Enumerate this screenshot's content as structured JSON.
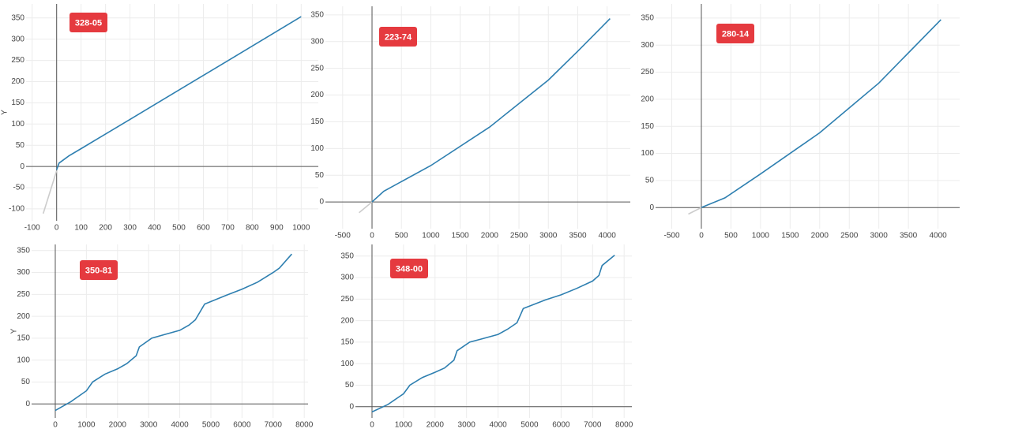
{
  "chart_data": [
    {
      "type": "line",
      "annotation": "328-05",
      "y_label": "Y",
      "xlim": [
        -125,
        1070
      ],
      "ylim": [
        -128,
        383
      ],
      "xticks": [
        -100,
        0,
        100,
        200,
        300,
        400,
        500,
        600,
        700,
        800,
        900,
        1000
      ],
      "yticks": [
        -100,
        -50,
        0,
        50,
        100,
        150,
        200,
        250,
        300,
        350
      ],
      "grid": true,
      "series": [
        {
          "color": "#cccccc",
          "x": [
            -55,
            0
          ],
          "values": [
            -111,
            -10
          ]
        },
        {
          "color": "#2e7fb0",
          "x": [
            0,
            10,
            50,
            100,
            300,
            500,
            700,
            1000
          ],
          "values": [
            -8,
            8,
            25,
            42,
            111,
            180,
            249,
            353
          ]
        }
      ]
    },
    {
      "type": "line",
      "annotation": "223-74",
      "xlim": [
        -793,
        4394
      ],
      "ylim": [
        -50,
        366
      ],
      "xticks": [
        -500,
        0,
        500,
        1000,
        1500,
        2000,
        2500,
        3000,
        3500,
        4000
      ],
      "yticks": [
        0,
        50,
        100,
        150,
        200,
        250,
        300,
        350
      ],
      "grid": true,
      "series": [
        {
          "color": "#cccccc",
          "x": [
            -220,
            0
          ],
          "values": [
            -20,
            0
          ]
        },
        {
          "color": "#2e7fb0",
          "x": [
            0,
            200,
            1000,
            2000,
            3000,
            3500,
            4050
          ],
          "values": [
            0,
            20,
            68,
            140,
            228,
            282,
            343
          ]
        }
      ]
    },
    {
      "type": "line",
      "annotation": "280-14",
      "xlim": [
        -774,
        4366
      ],
      "ylim": [
        -39,
        376
      ],
      "xticks": [
        -500,
        0,
        500,
        1000,
        1500,
        2000,
        2500,
        3000,
        3500,
        4000
      ],
      "yticks": [
        0,
        50,
        100,
        150,
        200,
        250,
        300,
        350
      ],
      "grid": true,
      "series": [
        {
          "color": "#cccccc",
          "x": [
            -220,
            0
          ],
          "values": [
            -12,
            0
          ]
        },
        {
          "color": "#2e7fb0",
          "x": [
            0,
            400,
            1000,
            2000,
            3000,
            4050
          ],
          "values": [
            0,
            18,
            62,
            138,
            230,
            347
          ]
        }
      ]
    },
    {
      "type": "line",
      "annotation": "350-81",
      "y_label": "Y",
      "xlim": [
        -761,
        8122
      ],
      "ylim": [
        -32,
        364
      ],
      "xticks": [
        0,
        1000,
        2000,
        3000,
        4000,
        5000,
        6000,
        7000,
        8000
      ],
      "yticks": [
        0,
        50,
        100,
        150,
        200,
        250,
        300,
        350
      ],
      "grid": true,
      "series": [
        {
          "color": "#2e7fb0",
          "x": [
            0,
            500,
            1000,
            1200,
            1600,
            2000,
            2300,
            2600,
            2700,
            3100,
            3500,
            4000,
            4300,
            4500,
            4800,
            5500,
            6000,
            6500,
            7000,
            7200,
            7600
          ],
          "values": [
            -15,
            5,
            30,
            50,
            68,
            80,
            92,
            110,
            130,
            150,
            158,
            168,
            180,
            192,
            228,
            248,
            262,
            278,
            300,
            310,
            342
          ]
        }
      ]
    },
    {
      "type": "line",
      "annotation": "348-00",
      "xlim": [
        -526,
        8246
      ],
      "ylim": [
        -26,
        377
      ],
      "xticks": [
        0,
        1000,
        2000,
        3000,
        4000,
        5000,
        6000,
        7000,
        8000
      ],
      "yticks": [
        0,
        50,
        100,
        150,
        200,
        250,
        300,
        350
      ],
      "grid": true,
      "series": [
        {
          "color": "#2e7fb0",
          "x": [
            0,
            500,
            1000,
            1200,
            1600,
            2000,
            2300,
            2600,
            2700,
            3100,
            3500,
            4000,
            4300,
            4600,
            4800,
            5500,
            6000,
            6500,
            7000,
            7200,
            7300,
            7700
          ],
          "values": [
            -12,
            5,
            30,
            50,
            68,
            80,
            90,
            108,
            130,
            150,
            158,
            168,
            180,
            195,
            228,
            248,
            260,
            275,
            292,
            305,
            328,
            352
          ]
        }
      ]
    }
  ]
}
